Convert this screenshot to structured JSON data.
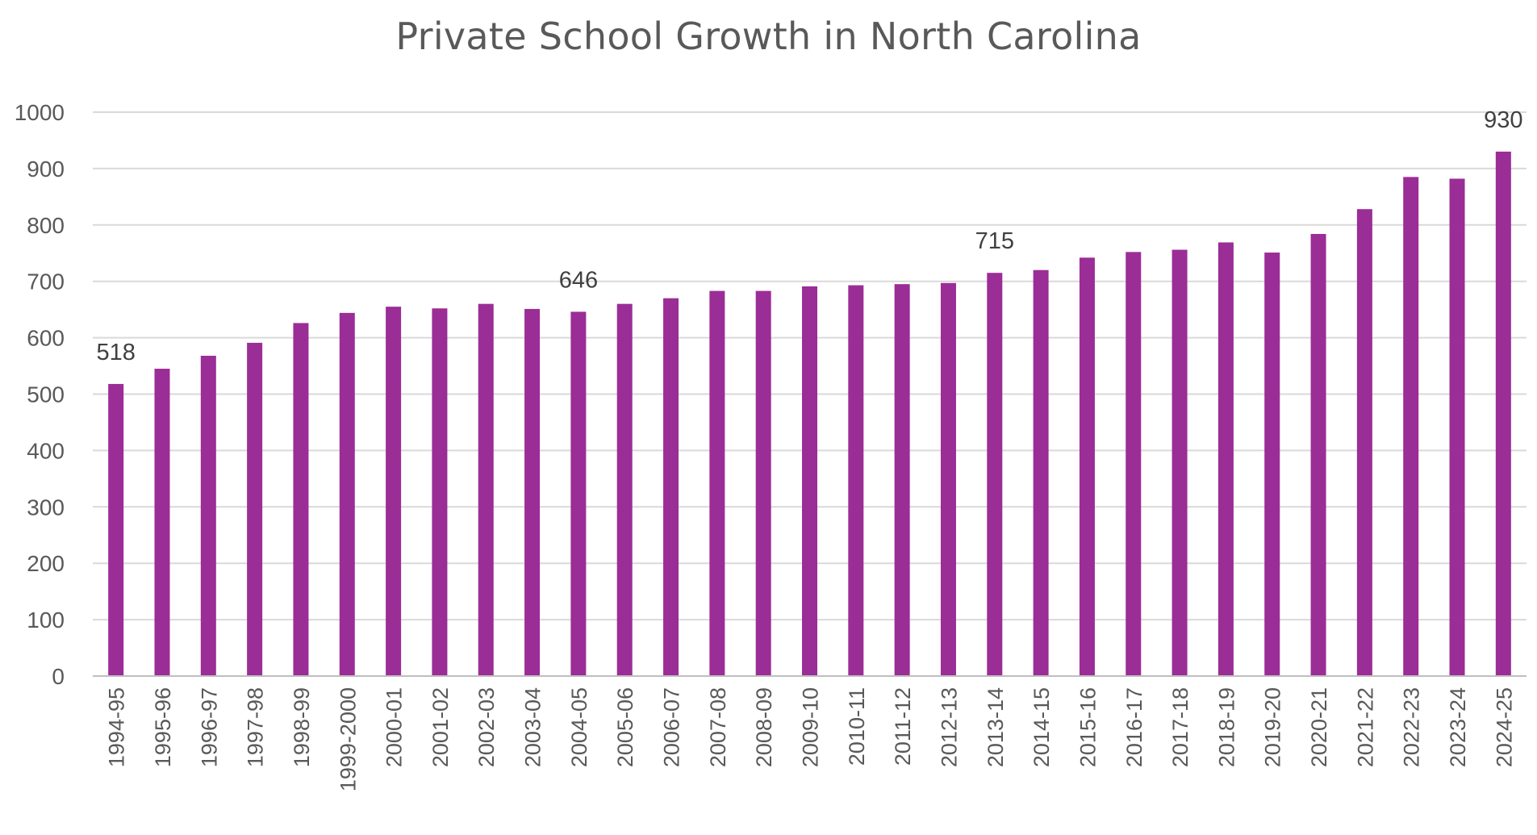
{
  "chart_data": {
    "type": "bar",
    "title": "Private School Growth in North Carolina",
    "xlabel": "",
    "ylabel": "",
    "ylim": [
      0,
      1000
    ],
    "yticks": [
      0,
      100,
      200,
      300,
      400,
      500,
      600,
      700,
      800,
      900,
      1000
    ],
    "grid": true,
    "legend": "none",
    "bar_color": "#9b2d96",
    "categories": [
      "1994-95",
      "1995-96",
      "1996-97",
      "1997-98",
      "1998-99",
      "1999-2000",
      "2000-01",
      "2001-02",
      "2002-03",
      "2003-04",
      "2004-05",
      "2005-06",
      "2006-07",
      "2007-08",
      "2008-09",
      "2009-10",
      "2010-11",
      "2011-12",
      "2012-13",
      "2013-14",
      "2014-15",
      "2015-16",
      "2016-17",
      "2017-18",
      "2018-19",
      "2019-20",
      "2020-21",
      "2021-22",
      "2022-23",
      "2023-24",
      "2024-25"
    ],
    "values": [
      518,
      545,
      568,
      591,
      626,
      644,
      655,
      652,
      660,
      651,
      646,
      660,
      670,
      683,
      683,
      691,
      693,
      695,
      697,
      715,
      720,
      742,
      752,
      756,
      769,
      751,
      784,
      828,
      885,
      882,
      930
    ],
    "data_labels": [
      {
        "category": "1994-95",
        "text": "518"
      },
      {
        "category": "2004-05",
        "text": "646"
      },
      {
        "category": "2013-14",
        "text": "715"
      },
      {
        "category": "2024-25",
        "text": "930"
      }
    ]
  }
}
